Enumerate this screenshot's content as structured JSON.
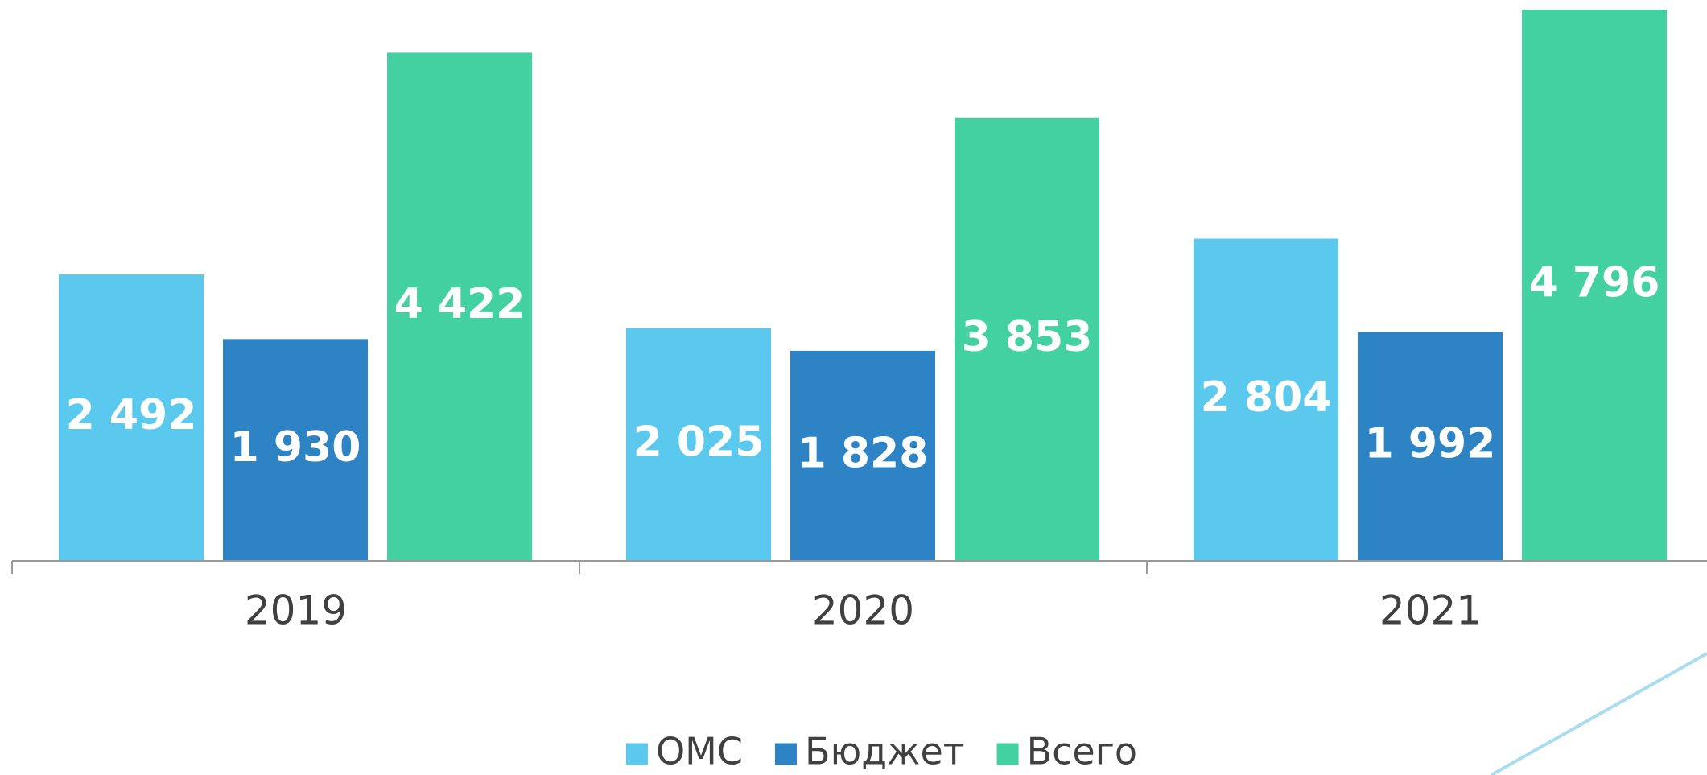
{
  "chart_data": {
    "type": "bar",
    "categories": [
      "2019",
      "2020",
      "2021"
    ],
    "series": [
      {
        "name": "ОМС",
        "color": "#5bc9ee",
        "values": [
          2492,
          2025,
          2804
        ],
        "value_labels": [
          "2 492",
          "2 025",
          "2 804"
        ]
      },
      {
        "name": "Бюджет",
        "color": "#2e83c4",
        "values": [
          1930,
          1828,
          1992
        ],
        "value_labels": [
          "1 930",
          "1 828",
          "1 992"
        ]
      },
      {
        "name": "Всего",
        "color": "#44d1a1",
        "values": [
          4422,
          3853,
          4796
        ],
        "value_labels": [
          "4 422",
          "3 853",
          "4 796"
        ]
      }
    ],
    "legend": "bottom"
  }
}
